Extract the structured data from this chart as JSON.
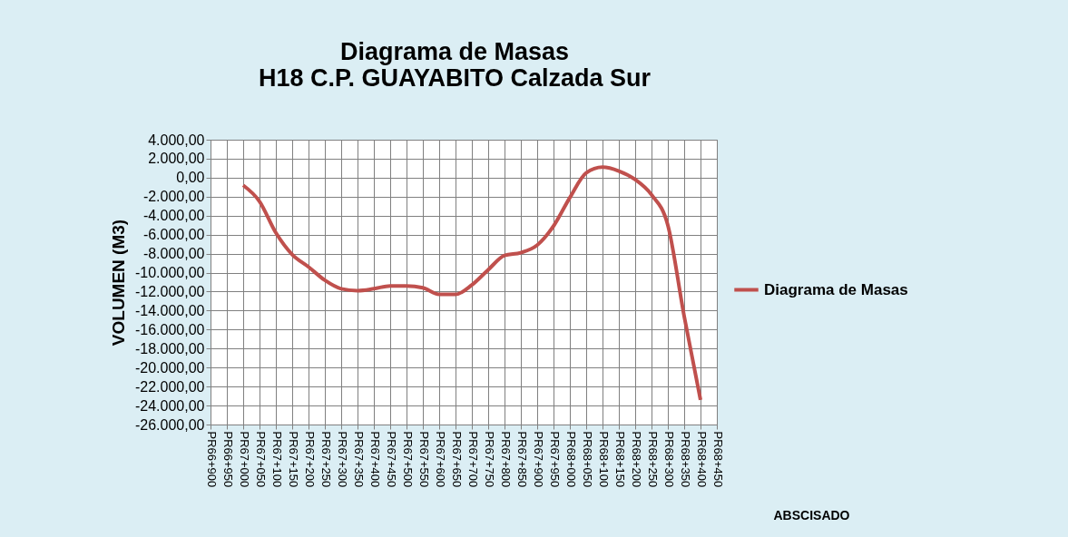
{
  "chart_data": {
    "type": "line",
    "title": [
      "Diagrama de Masas",
      "H18 C.P. GUAYABITO Calzada Sur"
    ],
    "xlabel": "ABSCISADO",
    "ylabel": "VOLUMEN (M3)",
    "categories": [
      "PR66+900",
      "PR66+950",
      "PR67+000",
      "PR67+050",
      "PR67+100",
      "PR67+150",
      "PR67+200",
      "PR67+250",
      "PR67+300",
      "PR67+350",
      "PR67+400",
      "PR67+450",
      "PR67+500",
      "PR67+550",
      "PR67+600",
      "PR67+650",
      "PR67+700",
      "PR67+750",
      "PR67+800",
      "PR67+850",
      "PR67+900",
      "PR67+950",
      "PR68+000",
      "PR68+050",
      "PR68+100",
      "PR68+150",
      "PR68+200",
      "PR68+250",
      "PR68+300",
      "PR68+350",
      "PR68+400",
      "PR68+450"
    ],
    "series": [
      {
        "name": "Diagrama de Masas",
        "color": "#c0504d",
        "values": [
          null,
          null,
          -800,
          -2500,
          -5800,
          -8100,
          -9400,
          -10800,
          -11700,
          -11900,
          -11700,
          -11400,
          -11400,
          -11600,
          -12300,
          -12300,
          -11300,
          -9700,
          -8200,
          -7900,
          -7100,
          -5100,
          -2100,
          500,
          1100,
          700,
          -200,
          -1800,
          -5000,
          -14600,
          -23400,
          null
        ]
      }
    ],
    "ylim": [
      -26000,
      4000
    ],
    "yticks": [
      {
        "value": -26000,
        "label": "-26.000,00"
      },
      {
        "value": -24000,
        "label": "-24.000,00"
      },
      {
        "value": -22000,
        "label": "-22.000,00"
      },
      {
        "value": -20000,
        "label": "-20.000,00"
      },
      {
        "value": -18000,
        "label": "-18.000,00"
      },
      {
        "value": -16000,
        "label": "-16.000,00"
      },
      {
        "value": -14000,
        "label": "-14.000,00"
      },
      {
        "value": -12000,
        "label": "-12.000,00"
      },
      {
        "value": -10000,
        "label": "-10.000,00"
      },
      {
        "value": -8000,
        "label": "-8.000,00"
      },
      {
        "value": -6000,
        "label": "-6.000,00"
      },
      {
        "value": -4000,
        "label": "-4.000,00"
      },
      {
        "value": -2000,
        "label": "-2.000,00"
      },
      {
        "value": 0,
        "label": "0,00"
      },
      {
        "value": 2000,
        "label": "2.000,00"
      },
      {
        "value": 4000,
        "label": "4.000,00"
      }
    ],
    "grid": true,
    "legend": "right",
    "marker": "none",
    "line_style": "solid"
  }
}
